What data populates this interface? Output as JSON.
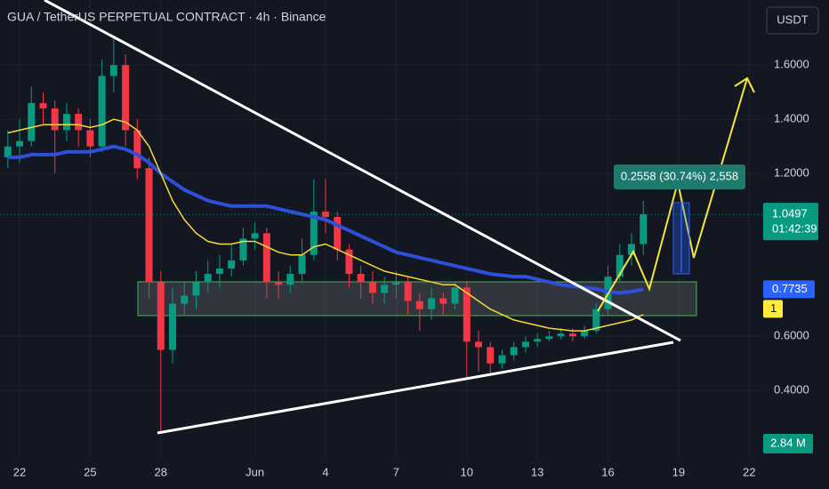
{
  "chart_data": {
    "type": "candlestick",
    "title": "GUA / TetherUS PERPETUAL CONTRACT · 4h · Binance",
    "currency": "USDT",
    "categories": [
      null,
      "22",
      null,
      null,
      null,
      null,
      null,
      "25",
      null,
      null,
      null,
      null,
      null,
      "28",
      null,
      null,
      null,
      null,
      null,
      null,
      null,
      "Jun",
      null,
      null,
      null,
      null,
      null,
      "4",
      null,
      null,
      null,
      null,
      null,
      "7",
      null,
      null,
      null,
      null,
      null,
      "10",
      null,
      null,
      null,
      null,
      null,
      "13",
      null,
      null,
      null,
      null,
      null,
      "16",
      null,
      null,
      null,
      null,
      null,
      "19",
      null,
      null,
      null,
      null,
      null,
      "22"
    ],
    "open": [
      1.26,
      1.3,
      1.32,
      1.46,
      1.44,
      1.36,
      1.42,
      1.36,
      1.3,
      1.56,
      1.6,
      1.36,
      1.22,
      0.8,
      0.55,
      0.72,
      0.75,
      0.8,
      0.83,
      0.85,
      0.88,
      0.96,
      0.98,
      0.8,
      0.79,
      0.83,
      0.9,
      1.06,
      1.04,
      0.92,
      0.83,
      0.8,
      0.76,
      0.79,
      0.8,
      0.73,
      0.7,
      0.74,
      0.72,
      0.78,
      0.58,
      0.56,
      0.5,
      0.53,
      0.56,
      0.58,
      0.59,
      0.6,
      0.61,
      0.6,
      0.62,
      0.7,
      0.82,
      0.9,
      0.94,
      null,
      null,
      null,
      null,
      null,
      null,
      null,
      null,
      null
    ],
    "high": [
      1.36,
      1.4,
      1.52,
      1.5,
      1.47,
      1.46,
      1.44,
      1.4,
      1.62,
      1.7,
      1.64,
      1.4,
      1.26,
      0.84,
      0.78,
      0.8,
      0.84,
      0.88,
      0.9,
      0.94,
      1.0,
      1.02,
      1.0,
      0.84,
      0.86,
      0.96,
      1.18,
      1.18,
      1.06,
      0.94,
      0.86,
      0.84,
      0.82,
      0.84,
      0.82,
      0.76,
      0.78,
      0.76,
      0.8,
      0.8,
      0.62,
      0.58,
      0.55,
      0.58,
      0.6,
      0.61,
      0.62,
      0.63,
      0.63,
      0.64,
      0.72,
      0.86,
      0.94,
      0.98,
      1.1,
      null,
      null,
      null,
      null,
      null,
      null,
      null,
      null,
      null
    ],
    "low": [
      1.22,
      1.24,
      1.3,
      1.38,
      1.2,
      1.32,
      1.3,
      1.26,
      1.28,
      1.5,
      1.3,
      1.18,
      0.74,
      0.25,
      0.5,
      0.68,
      0.7,
      0.76,
      0.78,
      0.82,
      0.86,
      0.92,
      0.74,
      0.74,
      0.76,
      0.8,
      0.88,
      0.98,
      0.88,
      0.78,
      0.74,
      0.72,
      0.72,
      0.74,
      0.68,
      0.62,
      0.66,
      0.68,
      0.7,
      0.44,
      0.47,
      0.46,
      0.48,
      0.51,
      0.54,
      0.56,
      0.58,
      0.59,
      0.58,
      0.59,
      0.61,
      0.68,
      0.8,
      0.86,
      0.9,
      null,
      null,
      null,
      null,
      null,
      null,
      null,
      null,
      null
    ],
    "close": [
      1.3,
      1.32,
      1.46,
      1.44,
      1.36,
      1.42,
      1.36,
      1.3,
      1.56,
      1.6,
      1.36,
      1.22,
      0.8,
      0.55,
      0.72,
      0.75,
      0.8,
      0.83,
      0.85,
      0.88,
      0.96,
      0.98,
      0.8,
      0.79,
      0.83,
      0.9,
      1.06,
      1.04,
      0.92,
      0.83,
      0.8,
      0.76,
      0.79,
      0.8,
      0.73,
      0.7,
      0.74,
      0.72,
      0.78,
      0.58,
      0.56,
      0.5,
      0.53,
      0.56,
      0.58,
      0.59,
      0.6,
      0.61,
      0.6,
      0.62,
      0.7,
      0.82,
      0.9,
      0.94,
      1.0497,
      null,
      null,
      null,
      null,
      null,
      null,
      null,
      null,
      null
    ],
    "up_color": "#089981",
    "down_color": "#f23645",
    "series": [
      {
        "color": "#2e4fd8",
        "values": [
          1.26,
          1.26,
          1.27,
          1.27,
          1.27,
          1.28,
          1.28,
          1.28,
          1.29,
          1.3,
          1.29,
          1.27,
          1.24,
          1.2,
          1.17,
          1.14,
          1.12,
          1.1,
          1.09,
          1.08,
          1.08,
          1.08,
          1.08,
          1.07,
          1.06,
          1.05,
          1.04,
          1.03,
          1.01,
          0.99,
          0.97,
          0.95,
          0.93,
          0.91,
          0.9,
          0.89,
          0.88,
          0.87,
          0.86,
          0.85,
          0.84,
          0.83,
          0.825,
          0.82,
          0.82,
          0.81,
          0.8,
          0.79,
          0.785,
          0.78,
          0.775,
          0.765,
          0.76,
          0.765,
          0.7735,
          null,
          null,
          null,
          null,
          null,
          null,
          null,
          null,
          null
        ]
      },
      {
        "color": "#f5d93b",
        "values": [
          1.35,
          1.36,
          1.37,
          1.38,
          1.38,
          1.38,
          1.38,
          1.37,
          1.38,
          1.4,
          1.39,
          1.36,
          1.3,
          1.2,
          1.1,
          1.03,
          0.98,
          0.95,
          0.94,
          0.94,
          0.95,
          0.95,
          0.93,
          0.91,
          0.9,
          0.9,
          0.93,
          0.94,
          0.92,
          0.9,
          0.88,
          0.86,
          0.84,
          0.83,
          0.82,
          0.81,
          0.8,
          0.79,
          0.79,
          0.76,
          0.73,
          0.7,
          0.68,
          0.66,
          0.65,
          0.64,
          0.63,
          0.625,
          0.62,
          0.62,
          0.63,
          0.64,
          0.65,
          0.66,
          0.68,
          null,
          null,
          null,
          null,
          null,
          null,
          null,
          null,
          null
        ]
      }
    ],
    "ylim": [
      0.15,
      1.84
    ],
    "yticks": [
      {
        "value": 0.4,
        "label": "0.4000"
      },
      {
        "value": 0.6,
        "label": "0.6000"
      },
      {
        "value": 1.2,
        "label": "1.2000"
      },
      {
        "value": 1.4,
        "label": "1.4000"
      },
      {
        "value": 1.6,
        "label": "1.6000"
      }
    ],
    "grid": true,
    "last_price": {
      "value": 1.0497,
      "countdown": "01:42:39",
      "color": "#089981"
    },
    "ma_label": {
      "value": 0.7735,
      "color": "#2962ff"
    },
    "period_label": "1",
    "volume_label": "2.84 M",
    "measure_label": "0.2558 (30.74%) 2,558"
  }
}
